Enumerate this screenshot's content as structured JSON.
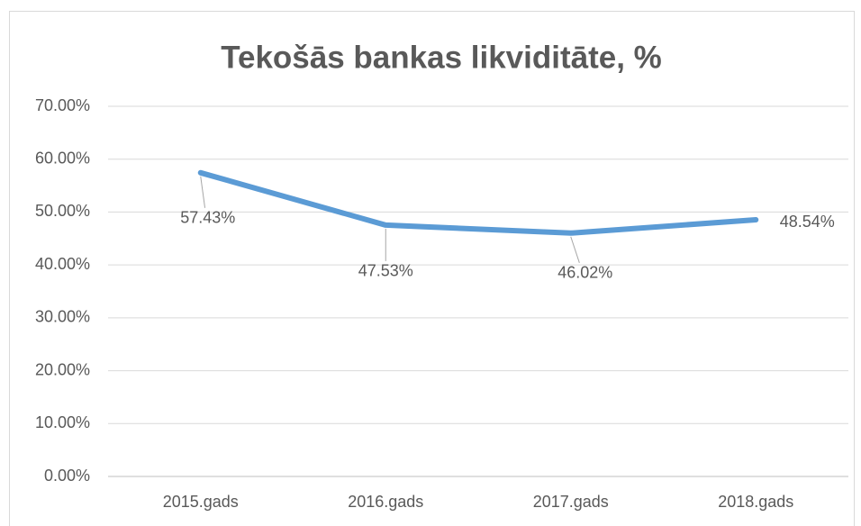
{
  "chart_data": {
    "type": "line",
    "title": "Tekošās bankas likviditāte, %",
    "categories": [
      "2015.gads",
      "2016.gads",
      "2017.gads",
      "2018.gads"
    ],
    "series": [
      {
        "name": "Tekošās bankas likviditāte",
        "color": "#5b9bd5",
        "values": [
          57.43,
          47.53,
          46.02,
          48.54
        ],
        "value_labels": [
          "57.43%",
          "47.53%",
          "46.02%",
          "48.54%"
        ]
      }
    ],
    "ylim": [
      0,
      70
    ],
    "yticks": [
      {
        "value": 0,
        "label": "0.00%"
      },
      {
        "value": 10,
        "label": "10.00%"
      },
      {
        "value": 20,
        "label": "20.00%"
      },
      {
        "value": 30,
        "label": "30.00%"
      },
      {
        "value": 40,
        "label": "40.00%"
      },
      {
        "value": 50,
        "label": "50.00%"
      },
      {
        "value": 60,
        "label": "60.00%"
      },
      {
        "value": 70,
        "label": "70.00%"
      }
    ],
    "grid": true
  }
}
